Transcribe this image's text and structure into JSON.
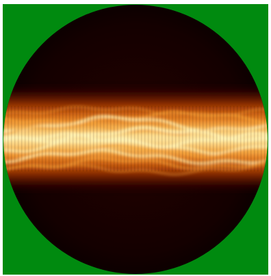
{
  "image": {
    "subject": "circular-beam-intensity-profile",
    "colors": {
      "background": "#008a0f",
      "disk_dark": "#160000",
      "band_mid": "#c64d0a",
      "band_bright": "#f6a43a",
      "band_core": "#fff2b4"
    }
  }
}
